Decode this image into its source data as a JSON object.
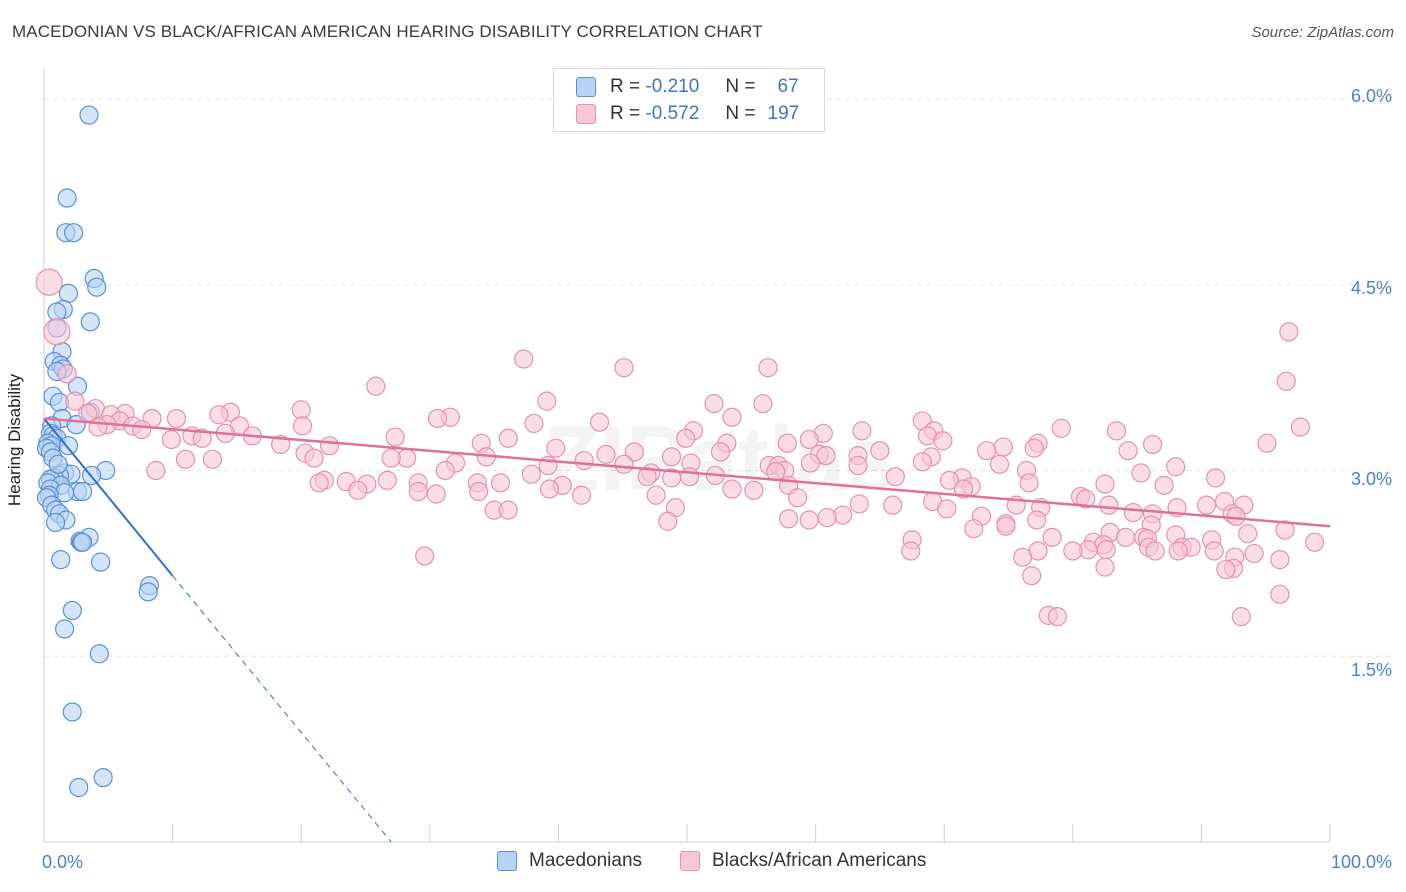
{
  "title": "MACEDONIAN VS BLACK/AFRICAN AMERICAN HEARING DISABILITY CORRELATION CHART",
  "source": "Source: ZipAtlas.com",
  "watermark": "ZIPatlas",
  "legend_top": {
    "rows": [
      {
        "r_label": "R =",
        "r_value": "-0.210",
        "n_label": "N =",
        "n_value": "67"
      },
      {
        "r_label": "R =",
        "r_value": "-0.572",
        "n_label": "N =",
        "n_value": "197"
      }
    ]
  },
  "legend_bottom": [
    "Macedonians",
    "Blacks/African Americans"
  ],
  "colors": {
    "blue_fill": "#b9d3f5",
    "blue_stroke": "#5a8fd8",
    "blue_line": "#2a6fd6",
    "pink_fill": "#f8c6d6",
    "pink_stroke": "#e592ad",
    "pink_line": "#e0709a",
    "tick_label": "#4a7fd0",
    "grid": "#e6e6e6"
  },
  "chart_data": {
    "type": "scatter",
    "title": "MACEDONIAN VS BLACK/AFRICAN AMERICAN HEARING DISABILITY CORRELATION CHART",
    "xlabel": "",
    "ylabel": "Hearing Disability",
    "xlim": [
      0,
      100
    ],
    "ylim": [
      0,
      6.25
    ],
    "x_tick_labels": [
      "0.0%",
      "100.0%"
    ],
    "y_ticks": [
      1.5,
      3.0,
      4.5,
      6.0
    ],
    "y_tick_labels": [
      "1.5%",
      "3.0%",
      "4.5%",
      "6.0%"
    ],
    "grid": true,
    "series": [
      {
        "name": "Macedonians",
        "r": -0.21,
        "n": 67,
        "trend": {
          "x0": 0,
          "y0": 3.42,
          "x1": 10,
          "y1": 2.15,
          "dash_to_x": 27,
          "dash_to_y": 0.0
        },
        "points": [
          [
            3.5,
            5.87
          ],
          [
            1.8,
            5.2
          ],
          [
            1.7,
            4.92
          ],
          [
            2.3,
            4.92
          ],
          [
            3.9,
            4.55
          ],
          [
            4.1,
            4.48
          ],
          [
            1.9,
            4.43
          ],
          [
            1.5,
            4.3
          ],
          [
            1.0,
            4.28
          ],
          [
            3.6,
            4.2
          ],
          [
            1.0,
            4.15
          ],
          [
            1.4,
            3.96
          ],
          [
            0.8,
            3.88
          ],
          [
            1.3,
            3.85
          ],
          [
            1.5,
            3.82
          ],
          [
            1.0,
            3.8
          ],
          [
            2.6,
            3.68
          ],
          [
            0.7,
            3.6
          ],
          [
            1.2,
            3.55
          ],
          [
            3.6,
            3.47
          ],
          [
            1.4,
            3.42
          ],
          [
            2.5,
            3.37
          ],
          [
            0.6,
            3.36
          ],
          [
            0.5,
            3.3
          ],
          [
            0.7,
            3.28
          ],
          [
            1.0,
            3.26
          ],
          [
            0.3,
            3.22
          ],
          [
            0.6,
            3.2
          ],
          [
            1.9,
            3.2
          ],
          [
            0.2,
            3.18
          ],
          [
            0.5,
            3.15
          ],
          [
            0.7,
            3.1
          ],
          [
            4.8,
            3.0
          ],
          [
            1.6,
            2.98
          ],
          [
            2.1,
            2.97
          ],
          [
            3.7,
            2.96
          ],
          [
            1.2,
            2.96
          ],
          [
            0.8,
            2.94
          ],
          [
            0.5,
            2.93
          ],
          [
            0.3,
            2.9
          ],
          [
            1.3,
            2.88
          ],
          [
            0.5,
            2.85
          ],
          [
            2.6,
            2.83
          ],
          [
            3.0,
            2.83
          ],
          [
            1.6,
            2.82
          ],
          [
            0.4,
            2.8
          ],
          [
            0.2,
            2.78
          ],
          [
            0.6,
            2.72
          ],
          [
            0.9,
            2.68
          ],
          [
            1.2,
            2.65
          ],
          [
            1.7,
            2.6
          ],
          [
            0.9,
            2.58
          ],
          [
            3.5,
            2.46
          ],
          [
            2.8,
            2.43
          ],
          [
            2.9,
            2.42
          ],
          [
            1.3,
            2.28
          ],
          [
            4.4,
            2.26
          ],
          [
            8.2,
            2.07
          ],
          [
            8.1,
            2.02
          ],
          [
            2.2,
            1.87
          ],
          [
            1.6,
            1.72
          ],
          [
            4.3,
            1.52
          ],
          [
            2.2,
            1.05
          ],
          [
            4.6,
            0.52
          ],
          [
            2.7,
            0.44
          ],
          [
            3.0,
            2.42
          ],
          [
            1.1,
            3.05
          ]
        ]
      },
      {
        "name": "Blacks/African Americans",
        "r": -0.572,
        "n": 197,
        "trend": {
          "x0": 0,
          "y0": 3.42,
          "x1": 100,
          "y1": 2.55
        },
        "points": [
          [
            0.4,
            4.52
          ],
          [
            1.0,
            4.12
          ],
          [
            96.8,
            4.12
          ],
          [
            37.3,
            3.9
          ],
          [
            45.1,
            3.83
          ],
          [
            56.3,
            3.83
          ],
          [
            1.8,
            3.78
          ],
          [
            96.6,
            3.72
          ],
          [
            25.8,
            3.68
          ],
          [
            39.1,
            3.56
          ],
          [
            2.4,
            3.56
          ],
          [
            4.0,
            3.5
          ],
          [
            52.1,
            3.54
          ],
          [
            55.9,
            3.54
          ],
          [
            20.0,
            3.49
          ],
          [
            14.5,
            3.47
          ],
          [
            6.3,
            3.46
          ],
          [
            3.4,
            3.46
          ],
          [
            5.2,
            3.45
          ],
          [
            13.6,
            3.45
          ],
          [
            31.6,
            3.43
          ],
          [
            53.5,
            3.43
          ],
          [
            30.6,
            3.42
          ],
          [
            8.4,
            3.42
          ],
          [
            10.3,
            3.42
          ],
          [
            5.9,
            3.4
          ],
          [
            68.3,
            3.4
          ],
          [
            43.2,
            3.39
          ],
          [
            38.1,
            3.38
          ],
          [
            4.9,
            3.37
          ],
          [
            6.9,
            3.36
          ],
          [
            20.1,
            3.36
          ],
          [
            15.2,
            3.36
          ],
          [
            4.2,
            3.35
          ],
          [
            7.6,
            3.33
          ],
          [
            97.7,
            3.35
          ],
          [
            79.1,
            3.34
          ],
          [
            83.4,
            3.32
          ],
          [
            63.6,
            3.32
          ],
          [
            69.2,
            3.32
          ],
          [
            50.5,
            3.32
          ],
          [
            60.6,
            3.3
          ],
          [
            68.7,
            3.28
          ],
          [
            14.1,
            3.3
          ],
          [
            16.2,
            3.28
          ],
          [
            11.5,
            3.28
          ],
          [
            27.3,
            3.27
          ],
          [
            49.9,
            3.26
          ],
          [
            36.1,
            3.26
          ],
          [
            9.9,
            3.25
          ],
          [
            12.3,
            3.26
          ],
          [
            59.5,
            3.25
          ],
          [
            69.9,
            3.24
          ],
          [
            57.8,
            3.22
          ],
          [
            53.1,
            3.22
          ],
          [
            77.3,
            3.22
          ],
          [
            95.1,
            3.22
          ],
          [
            34.0,
            3.22
          ],
          [
            18.4,
            3.21
          ],
          [
            22.2,
            3.2
          ],
          [
            86.2,
            3.21
          ],
          [
            74.6,
            3.19
          ],
          [
            77.0,
            3.18
          ],
          [
            39.8,
            3.18
          ],
          [
            73.3,
            3.16
          ],
          [
            52.6,
            3.15
          ],
          [
            84.3,
            3.16
          ],
          [
            65.0,
            3.16
          ],
          [
            45.9,
            3.15
          ],
          [
            20.3,
            3.14
          ],
          [
            43.7,
            3.13
          ],
          [
            60.3,
            3.13
          ],
          [
            48.8,
            3.11
          ],
          [
            69.0,
            3.11
          ],
          [
            60.8,
            3.12
          ],
          [
            63.3,
            3.12
          ],
          [
            34.4,
            3.11
          ],
          [
            28.2,
            3.1
          ],
          [
            27.0,
            3.1
          ],
          [
            21.0,
            3.1
          ],
          [
            11.0,
            3.09
          ],
          [
            13.1,
            3.09
          ],
          [
            42.0,
            3.08
          ],
          [
            68.3,
            3.07
          ],
          [
            50.3,
            3.06
          ],
          [
            59.6,
            3.06
          ],
          [
            32.0,
            3.06
          ],
          [
            45.1,
            3.05
          ],
          [
            74.3,
            3.05
          ],
          [
            39.2,
            3.04
          ],
          [
            63.3,
            3.04
          ],
          [
            56.4,
            3.04
          ],
          [
            57.1,
            3.04
          ],
          [
            88.0,
            3.03
          ],
          [
            8.7,
            3.0
          ],
          [
            31.2,
            3.0
          ],
          [
            57.6,
            3.0
          ],
          [
            76.4,
            3.0
          ],
          [
            56.9,
            2.99
          ],
          [
            85.3,
            2.98
          ],
          [
            47.2,
            2.98
          ],
          [
            37.9,
            2.97
          ],
          [
            52.2,
            2.96
          ],
          [
            66.2,
            2.95
          ],
          [
            91.1,
            2.94
          ],
          [
            46.9,
            2.95
          ],
          [
            48.8,
            2.94
          ],
          [
            50.2,
            2.95
          ],
          [
            71.4,
            2.94
          ],
          [
            70.4,
            2.92
          ],
          [
            21.8,
            2.92
          ],
          [
            23.5,
            2.91
          ],
          [
            26.7,
            2.92
          ],
          [
            21.4,
            2.9
          ],
          [
            29.1,
            2.9
          ],
          [
            33.7,
            2.9
          ],
          [
            35.5,
            2.9
          ],
          [
            25.1,
            2.89
          ],
          [
            82.5,
            2.89
          ],
          [
            76.6,
            2.9
          ],
          [
            87.1,
            2.88
          ],
          [
            57.9,
            2.88
          ],
          [
            40.3,
            2.88
          ],
          [
            72.1,
            2.87
          ],
          [
            39.3,
            2.85
          ],
          [
            53.5,
            2.85
          ],
          [
            71.5,
            2.85
          ],
          [
            24.4,
            2.84
          ],
          [
            29.1,
            2.83
          ],
          [
            33.8,
            2.83
          ],
          [
            55.2,
            2.84
          ],
          [
            30.5,
            2.81
          ],
          [
            41.8,
            2.8
          ],
          [
            47.6,
            2.8
          ],
          [
            80.6,
            2.79
          ],
          [
            58.6,
            2.78
          ],
          [
            81.0,
            2.77
          ],
          [
            91.8,
            2.75
          ],
          [
            69.1,
            2.75
          ],
          [
            63.4,
            2.73
          ],
          [
            66.0,
            2.72
          ],
          [
            82.8,
            2.72
          ],
          [
            90.4,
            2.72
          ],
          [
            93.3,
            2.72
          ],
          [
            75.6,
            2.72
          ],
          [
            77.5,
            2.7
          ],
          [
            88.1,
            2.7
          ],
          [
            49.1,
            2.7
          ],
          [
            70.2,
            2.69
          ],
          [
            35.0,
            2.68
          ],
          [
            36.1,
            2.68
          ],
          [
            84.7,
            2.66
          ],
          [
            86.2,
            2.65
          ],
          [
            92.4,
            2.65
          ],
          [
            62.1,
            2.64
          ],
          [
            72.9,
            2.63
          ],
          [
            92.7,
            2.63
          ],
          [
            60.9,
            2.62
          ],
          [
            57.9,
            2.61
          ],
          [
            77.2,
            2.6
          ],
          [
            59.5,
            2.6
          ],
          [
            48.5,
            2.59
          ],
          [
            74.8,
            2.57
          ],
          [
            86.1,
            2.56
          ],
          [
            74.8,
            2.55
          ],
          [
            72.3,
            2.53
          ],
          [
            96.5,
            2.52
          ],
          [
            82.9,
            2.5
          ],
          [
            93.6,
            2.49
          ],
          [
            88.0,
            2.48
          ],
          [
            84.1,
            2.46
          ],
          [
            78.4,
            2.46
          ],
          [
            85.5,
            2.46
          ],
          [
            85.8,
            2.45
          ],
          [
            90.8,
            2.44
          ],
          [
            67.5,
            2.44
          ],
          [
            81.6,
            2.42
          ],
          [
            98.8,
            2.42
          ],
          [
            82.4,
            2.4
          ],
          [
            85.9,
            2.38
          ],
          [
            88.5,
            2.38
          ],
          [
            89.2,
            2.38
          ],
          [
            81.2,
            2.36
          ],
          [
            82.6,
            2.36
          ],
          [
            80.0,
            2.35
          ],
          [
            77.3,
            2.35
          ],
          [
            86.4,
            2.35
          ],
          [
            67.4,
            2.35
          ],
          [
            88.2,
            2.35
          ],
          [
            91.0,
            2.35
          ],
          [
            94.1,
            2.33
          ],
          [
            92.6,
            2.3
          ],
          [
            29.6,
            2.31
          ],
          [
            76.1,
            2.3
          ],
          [
            96.1,
            2.28
          ],
          [
            92.5,
            2.21
          ],
          [
            82.5,
            2.22
          ],
          [
            91.9,
            2.2
          ],
          [
            76.8,
            2.15
          ],
          [
            96.1,
            2.0
          ],
          [
            78.1,
            1.83
          ],
          [
            78.8,
            1.82
          ],
          [
            93.1,
            1.82
          ]
        ]
      }
    ]
  }
}
